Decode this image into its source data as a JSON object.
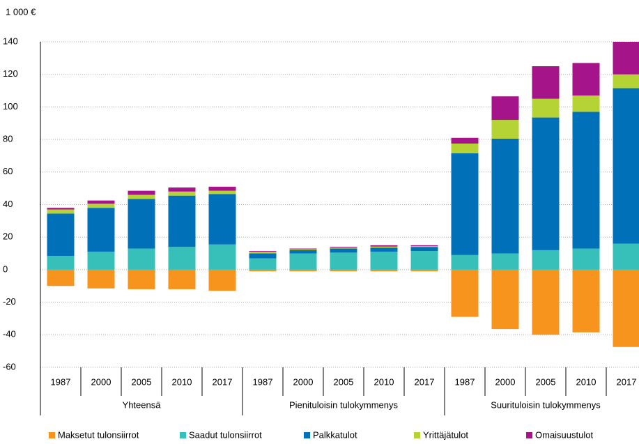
{
  "chart_data": {
    "type": "bar",
    "stacked": true,
    "y_label": "1 000 €",
    "categories": [
      "1987",
      "2000",
      "2005",
      "2010",
      "2017",
      "1987",
      "2000",
      "2005",
      "2010",
      "2017",
      "1987",
      "2000",
      "2005",
      "2010",
      "2017"
    ],
    "groups": [
      "Yhteensä",
      "Pienituloisin tulokymmenys",
      "Suurituloisin tulokymmenys"
    ],
    "series": [
      {
        "name": "Maksetut tulonsiirrot",
        "color": "#f7941d",
        "values": [
          -10,
          -11.5,
          -12,
          -12,
          -13,
          -1,
          -1,
          -1,
          -1,
          -1,
          -29,
          -36.5,
          -40,
          -38.5,
          -47.5
        ]
      },
      {
        "name": "Saadut tulonsiirrot",
        "color": "#36c0b9",
        "values": [
          8.5,
          11,
          13,
          14,
          15.5,
          7,
          10,
          10.5,
          11,
          11.5,
          9,
          10,
          12,
          13,
          16
        ]
      },
      {
        "name": "Palkkatulot",
        "color": "#0070b8",
        "values": [
          26,
          27,
          30.5,
          31.5,
          31,
          3,
          2,
          2.5,
          2.5,
          2.5,
          62.5,
          70.5,
          81.5,
          84,
          95.5
        ]
      },
      {
        "name": "Yrittäjätulot",
        "color": "#b5d334",
        "values": [
          2.5,
          2.5,
          2.5,
          2.5,
          2,
          1,
          0.5,
          0.5,
          0.7,
          0.5,
          6,
          11.5,
          11.5,
          10,
          8.5
        ]
      },
      {
        "name": "Omaisuustulot",
        "color": "#a6148a",
        "values": [
          1,
          2,
          2.5,
          2.5,
          2.5,
          0.5,
          0.5,
          0.5,
          0.8,
          0.5,
          3.5,
          14.5,
          20,
          20,
          20
        ]
      }
    ],
    "ylim": [
      -60,
      140
    ],
    "yticks": [
      -60,
      -40,
      -20,
      0,
      20,
      40,
      60,
      80,
      100,
      120,
      140
    ],
    "grid": true
  }
}
